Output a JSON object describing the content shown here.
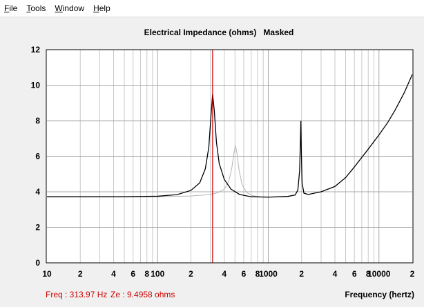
{
  "menu": {
    "items": [
      {
        "label": "File",
        "accel": "F",
        "rest": "ile"
      },
      {
        "label": "Tools",
        "accel": "T",
        "rest": "ools"
      },
      {
        "label": "Window",
        "accel": "W",
        "rest": "indow"
      },
      {
        "label": "Help",
        "accel": "H",
        "rest": "elp"
      }
    ]
  },
  "readout": {
    "freq": "Freq : 313.97 Hz",
    "ze": "Ze : 9.4958 ohms"
  },
  "colors": {
    "cursor": "#cc0000",
    "primary_curve": "#000000",
    "masked_curve": "#b4b4b4",
    "grid": "#c8c8c8"
  },
  "chart_data": {
    "type": "line",
    "title": "Electrical Impedance (ohms)   Masked",
    "xlabel": "Frequency (hertz)",
    "ylabel": "",
    "xscale": "log",
    "xlim": [
      10,
      20000
    ],
    "ylim": [
      0,
      12
    ],
    "grid": true,
    "x_tick_labels": [
      {
        "x": 10,
        "label": "10"
      },
      {
        "x": 20,
        "label": "2"
      },
      {
        "x": 40,
        "label": "4"
      },
      {
        "x": 60,
        "label": "6"
      },
      {
        "x": 80,
        "label": "8"
      },
      {
        "x": 100,
        "label": "100"
      },
      {
        "x": 200,
        "label": "2"
      },
      {
        "x": 400,
        "label": "4"
      },
      {
        "x": 600,
        "label": "6"
      },
      {
        "x": 800,
        "label": "8"
      },
      {
        "x": 1000,
        "label": "1000"
      },
      {
        "x": 2000,
        "label": "2"
      },
      {
        "x": 4000,
        "label": "4"
      },
      {
        "x": 6000,
        "label": "6"
      },
      {
        "x": 8000,
        "label": "8"
      },
      {
        "x": 10000,
        "label": "10000"
      },
      {
        "x": 20000,
        "label": "2"
      }
    ],
    "y_ticks": [
      0,
      2,
      4,
      6,
      8,
      10,
      12
    ],
    "cursor_x": 313.97,
    "series": [
      {
        "role": "primary",
        "points": [
          [
            10,
            3.72
          ],
          [
            50,
            3.72
          ],
          [
            100,
            3.75
          ],
          [
            150,
            3.84
          ],
          [
            200,
            4.08
          ],
          [
            240,
            4.5
          ],
          [
            270,
            5.3
          ],
          [
            290,
            6.5
          ],
          [
            303,
            8.2
          ],
          [
            313.97,
            9.5
          ],
          [
            325,
            8.6
          ],
          [
            340,
            6.8
          ],
          [
            360,
            5.6
          ],
          [
            400,
            4.7
          ],
          [
            460,
            4.15
          ],
          [
            550,
            3.85
          ],
          [
            700,
            3.72
          ],
          [
            1000,
            3.7
          ],
          [
            1500,
            3.74
          ],
          [
            1750,
            3.82
          ],
          [
            1850,
            4.1
          ],
          [
            1920,
            5.2
          ],
          [
            1950,
            6.8
          ],
          [
            1970,
            8.0
          ],
          [
            1990,
            6.2
          ],
          [
            2020,
            4.5
          ],
          [
            2100,
            3.92
          ],
          [
            2300,
            3.85
          ],
          [
            3000,
            4.0
          ],
          [
            4000,
            4.3
          ],
          [
            5000,
            4.8
          ],
          [
            6000,
            5.4
          ],
          [
            8000,
            6.4
          ],
          [
            10000,
            7.2
          ],
          [
            12000,
            7.9
          ],
          [
            14000,
            8.6
          ],
          [
            17000,
            9.6
          ],
          [
            20000,
            10.6
          ]
        ]
      },
      {
        "role": "masked",
        "points": [
          [
            10,
            3.72
          ],
          [
            100,
            3.72
          ],
          [
            200,
            3.76
          ],
          [
            300,
            3.85
          ],
          [
            350,
            3.95
          ],
          [
            400,
            4.15
          ],
          [
            440,
            4.6
          ],
          [
            470,
            5.4
          ],
          [
            490,
            6.2
          ],
          [
            505,
            6.6
          ],
          [
            520,
            6.2
          ],
          [
            545,
            5.2
          ],
          [
            580,
            4.4
          ],
          [
            640,
            3.95
          ],
          [
            720,
            3.78
          ],
          [
            850,
            3.72
          ],
          [
            1000,
            3.7
          ],
          [
            1300,
            3.71
          ],
          [
            1550,
            3.72
          ]
        ]
      }
    ]
  }
}
